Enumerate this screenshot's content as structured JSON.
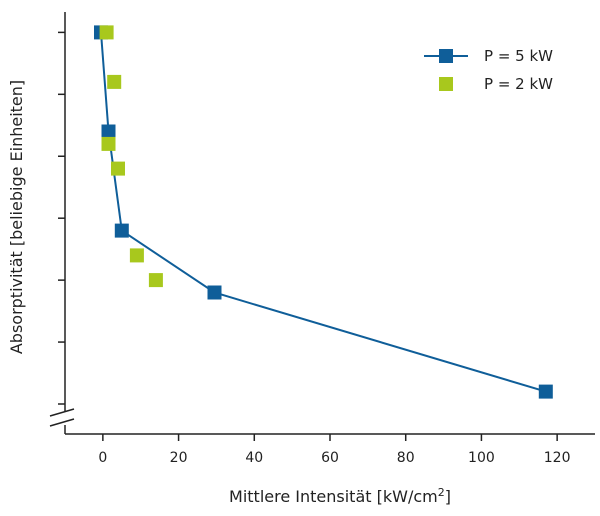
{
  "chart_data": {
    "type": "scatter",
    "title": "",
    "xlabel": "Mittlere Intensität [kW/cm²]",
    "xlabel_main": "Mittlere Intensität [kW/cm",
    "xlabel_sup": "2",
    "xlabel_tail": "]",
    "ylabel": "Absorptivität [beliebige Einheiten]",
    "xlim": [
      -10,
      130
    ],
    "ylim": [
      0,
      6.2
    ],
    "x_ticks": [
      0,
      20,
      40,
      60,
      80,
      100,
      120
    ],
    "x_tick_labels": [
      "0",
      "20",
      "40",
      "60",
      "80",
      100,
      "120"
    ],
    "y_ticks": [
      0,
      1,
      2,
      3,
      4,
      5,
      6
    ],
    "y_tick_labels_shown": false,
    "y_axis_break": true,
    "grid": false,
    "legend_position": "top-right",
    "series": [
      {
        "name": "P = 5 kW",
        "color": "#0f5e99",
        "marker": "square",
        "line": true,
        "points": [
          {
            "x": -0.5,
            "y": 6.0
          },
          {
            "x": 1.5,
            "y": 4.4
          },
          {
            "x": 5.0,
            "y": 2.8
          },
          {
            "x": 29.5,
            "y": 1.8
          },
          {
            "x": 117.0,
            "y": 0.2
          }
        ]
      },
      {
        "name": "P = 2 kW",
        "color": "#a8c81d",
        "marker": "square",
        "line": false,
        "points": [
          {
            "x": 1.0,
            "y": 6.0
          },
          {
            "x": 3.0,
            "y": 5.2
          },
          {
            "x": 1.5,
            "y": 4.2
          },
          {
            "x": 4.0,
            "y": 3.8
          },
          {
            "x": 9.0,
            "y": 2.4
          },
          {
            "x": 14.0,
            "y": 2.0
          }
        ]
      }
    ]
  }
}
